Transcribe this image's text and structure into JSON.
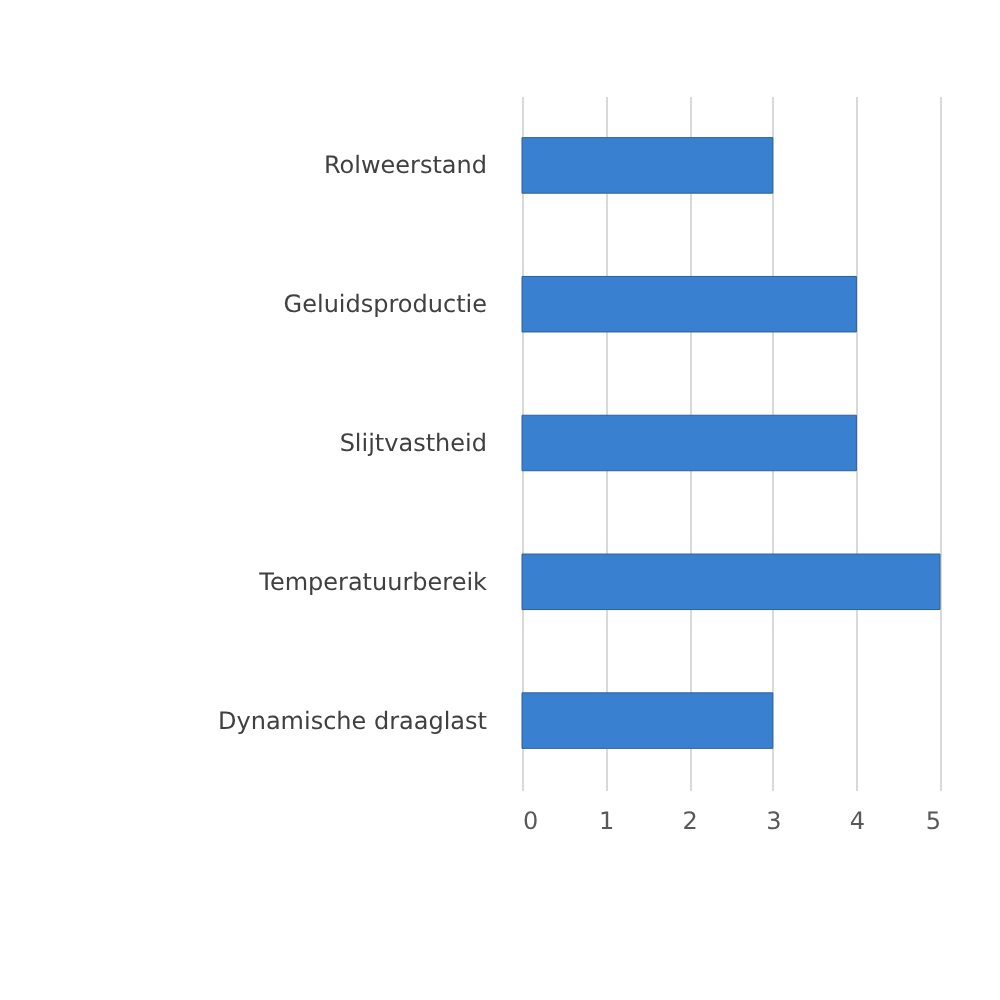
{
  "chart_data": {
    "type": "bar",
    "orientation": "horizontal",
    "categories": [
      "Rolweerstand",
      "Geluidsproductie",
      "Slijtvastheid",
      "Temperatuurbereik",
      "Dynamische draaglast"
    ],
    "values": [
      3,
      4,
      4,
      5,
      3
    ],
    "color": "#3a80d0",
    "xlim": [
      0,
      5
    ],
    "xticks": [
      0,
      1,
      2,
      3,
      4,
      5
    ],
    "grid": "x"
  }
}
